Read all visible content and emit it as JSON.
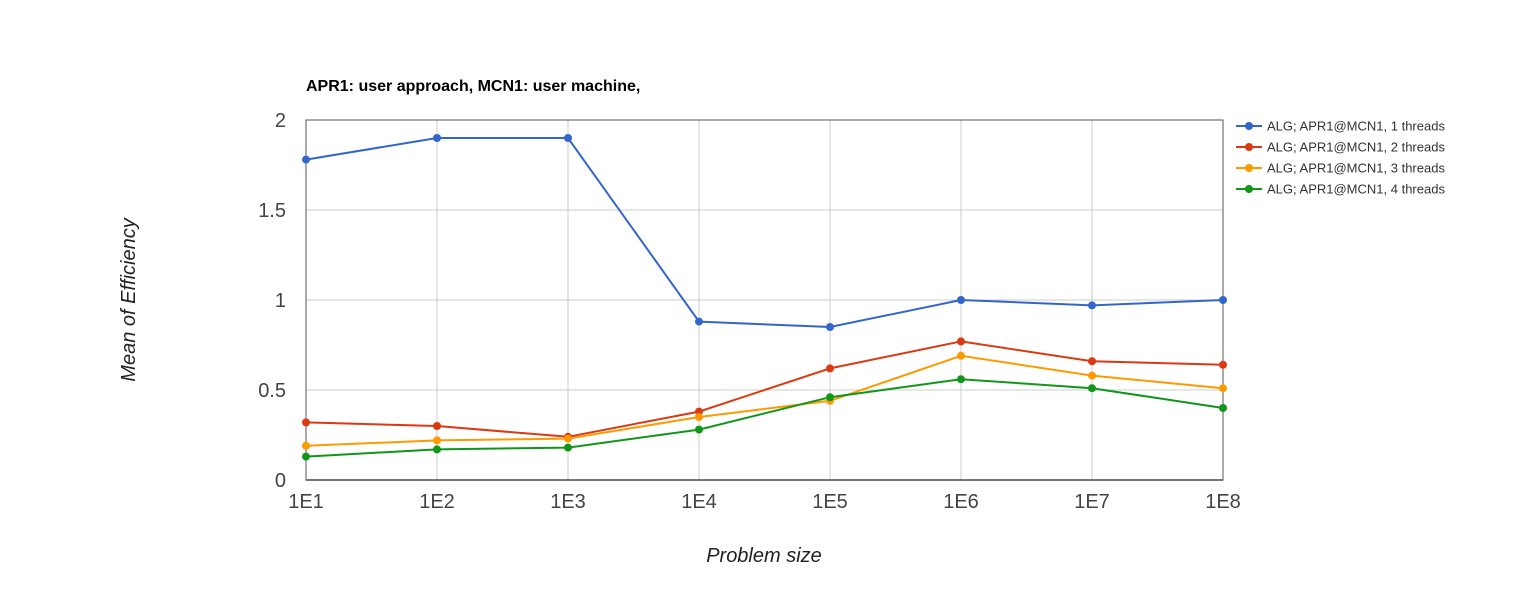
{
  "chart_data": {
    "type": "line",
    "title": "APR1: user approach, MCN1: user machine,",
    "xlabel": "Problem size",
    "ylabel": "Mean of Efficiency",
    "categories": [
      "1E1",
      "1E2",
      "1E3",
      "1E4",
      "1E5",
      "1E6",
      "1E7",
      "1E8"
    ],
    "y_ticks": [
      "0",
      "0.5",
      "1",
      "1.5",
      "2"
    ],
    "ylim": [
      0,
      2
    ],
    "grid": true,
    "legend_position": "right",
    "series": [
      {
        "name": "ALG; APR1@MCN1, 1 threads",
        "color": "#3366cc",
        "values": [
          1.78,
          1.9,
          1.9,
          0.88,
          0.85,
          1.0,
          0.97,
          1.0
        ]
      },
      {
        "name": "ALG; APR1@MCN1, 2 threads",
        "color": "#dc3912",
        "values": [
          0.32,
          0.3,
          0.24,
          0.38,
          0.62,
          0.77,
          0.66,
          0.64
        ]
      },
      {
        "name": "ALG; APR1@MCN1, 3 threads",
        "color": "#ff9900",
        "values": [
          0.19,
          0.22,
          0.23,
          0.35,
          0.44,
          0.69,
          0.58,
          0.51
        ]
      },
      {
        "name": "ALG; APR1@MCN1, 4 threads",
        "color": "#109618",
        "values": [
          0.13,
          0.17,
          0.18,
          0.28,
          0.46,
          0.56,
          0.51,
          0.4
        ]
      }
    ]
  }
}
